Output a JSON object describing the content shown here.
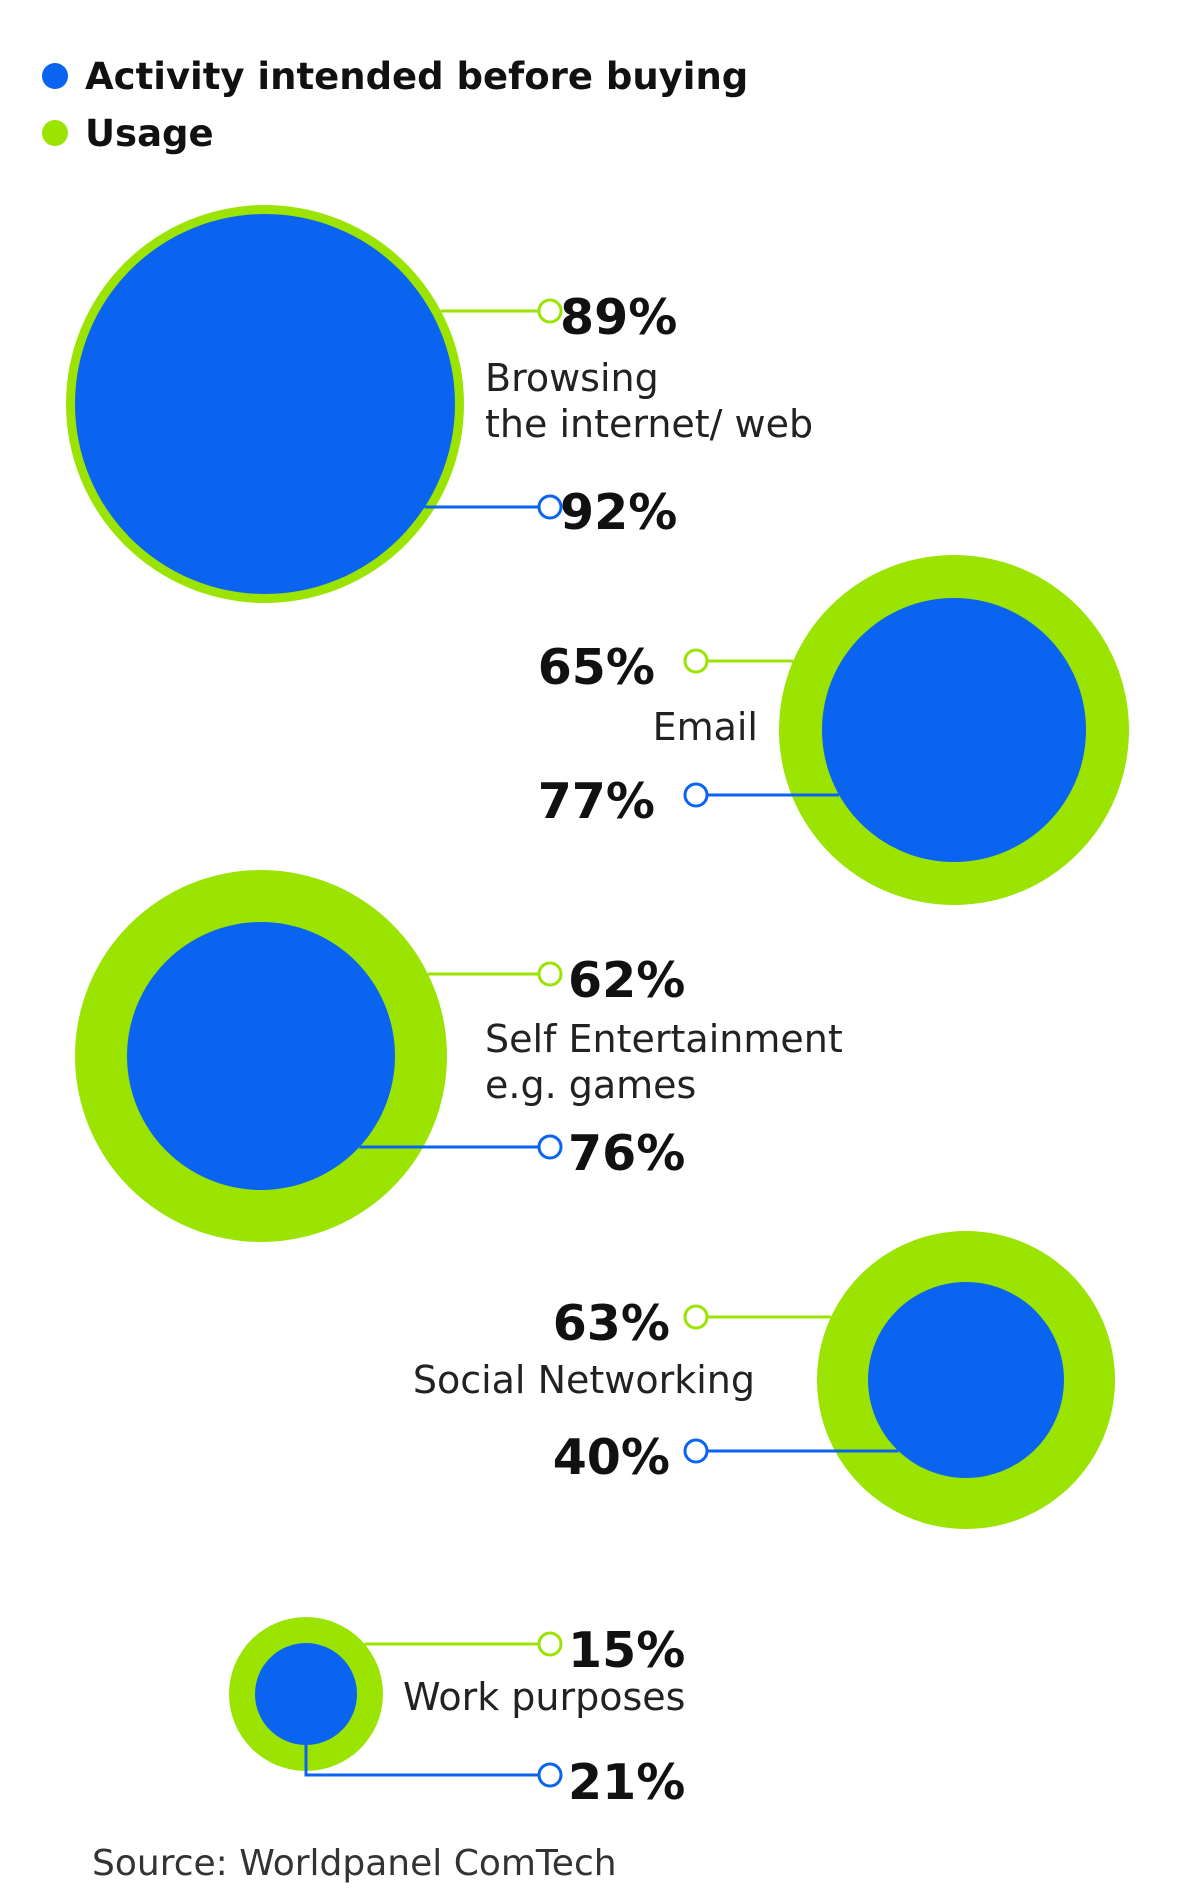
{
  "colors": {
    "intended": "#0a64f0",
    "usage": "#9be300",
    "text": "#111111"
  },
  "legend": {
    "intended_label": "Activity intended before buying",
    "usage_label": "Usage"
  },
  "chart_data": {
    "type": "bubble",
    "title": "",
    "series": [
      {
        "name": "Activity intended before buying",
        "values": [
          92,
          77,
          76,
          40,
          21
        ]
      },
      {
        "name": "Usage",
        "values": [
          89,
          65,
          62,
          63,
          15
        ]
      }
    ],
    "categories": [
      "Browsing the internet/ web",
      "Email",
      "Self Entertainment e.g. games",
      "Social Networking",
      "Work purposes"
    ],
    "items": [
      {
        "category_lines": [
          "Browsing",
          "the internet/ web"
        ],
        "usage": 89,
        "usage_label": "89%",
        "intended": 92,
        "intended_label": "92%"
      },
      {
        "category_lines": [
          "Email"
        ],
        "usage": 65,
        "usage_label": "65%",
        "intended": 77,
        "intended_label": "77%"
      },
      {
        "category_lines": [
          "Self Entertainment",
          "e.g. games"
        ],
        "usage": 62,
        "usage_label": "62%",
        "intended": 76,
        "intended_label": "76%"
      },
      {
        "category_lines": [
          "Social Networking"
        ],
        "usage": 63,
        "usage_label": "63%",
        "intended": 40,
        "intended_label": "40%"
      },
      {
        "category_lines": [
          "Work purposes"
        ],
        "usage": 15,
        "usage_label": "15%",
        "intended": 21,
        "intended_label": "21%"
      }
    ]
  },
  "source": "Source: Worldpanel ComTech"
}
